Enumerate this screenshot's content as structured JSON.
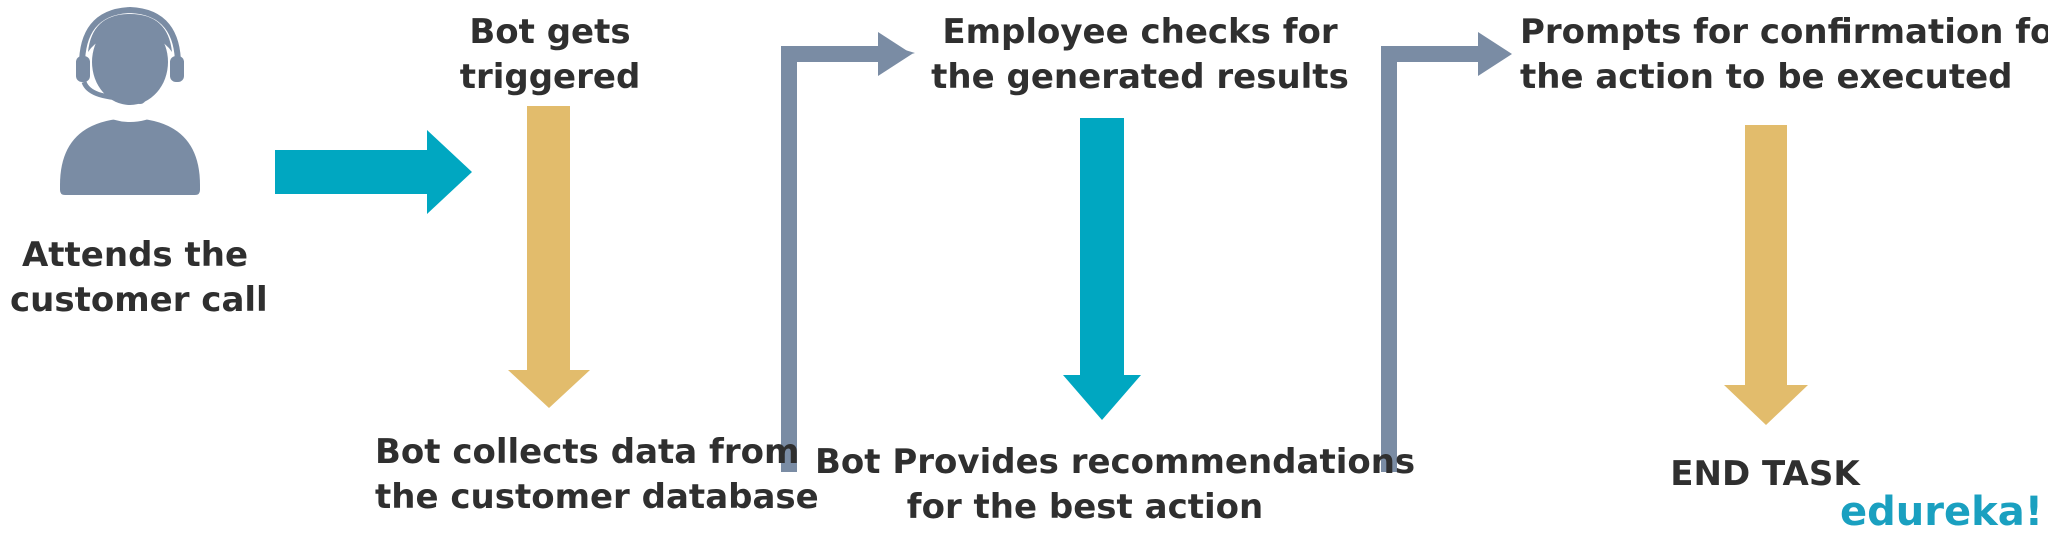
{
  "labels": {
    "attends_call": [
      "Attends the",
      "customer call"
    ],
    "bot_triggered": [
      "Bot gets",
      "triggered"
    ],
    "bot_collects": [
      "Bot collects data from",
      "the customer database"
    ],
    "employee_checks": [
      "Employee checks for",
      "the generated results"
    ],
    "bot_provides": [
      "Bot Provides recommendations",
      "for the best action"
    ],
    "prompts_confirmation": [
      "Prompts for confirmation for",
      "the action to be executed"
    ],
    "end_task": "END TASK"
  },
  "brand": "edureka!",
  "colors": {
    "text": "#2f2f2f",
    "teal": "#00a7c1",
    "gold": "#e2bc6c",
    "slate": "#7a8ca4",
    "brand": "#1aa0c0"
  },
  "icons": [
    "call-agent-icon"
  ]
}
